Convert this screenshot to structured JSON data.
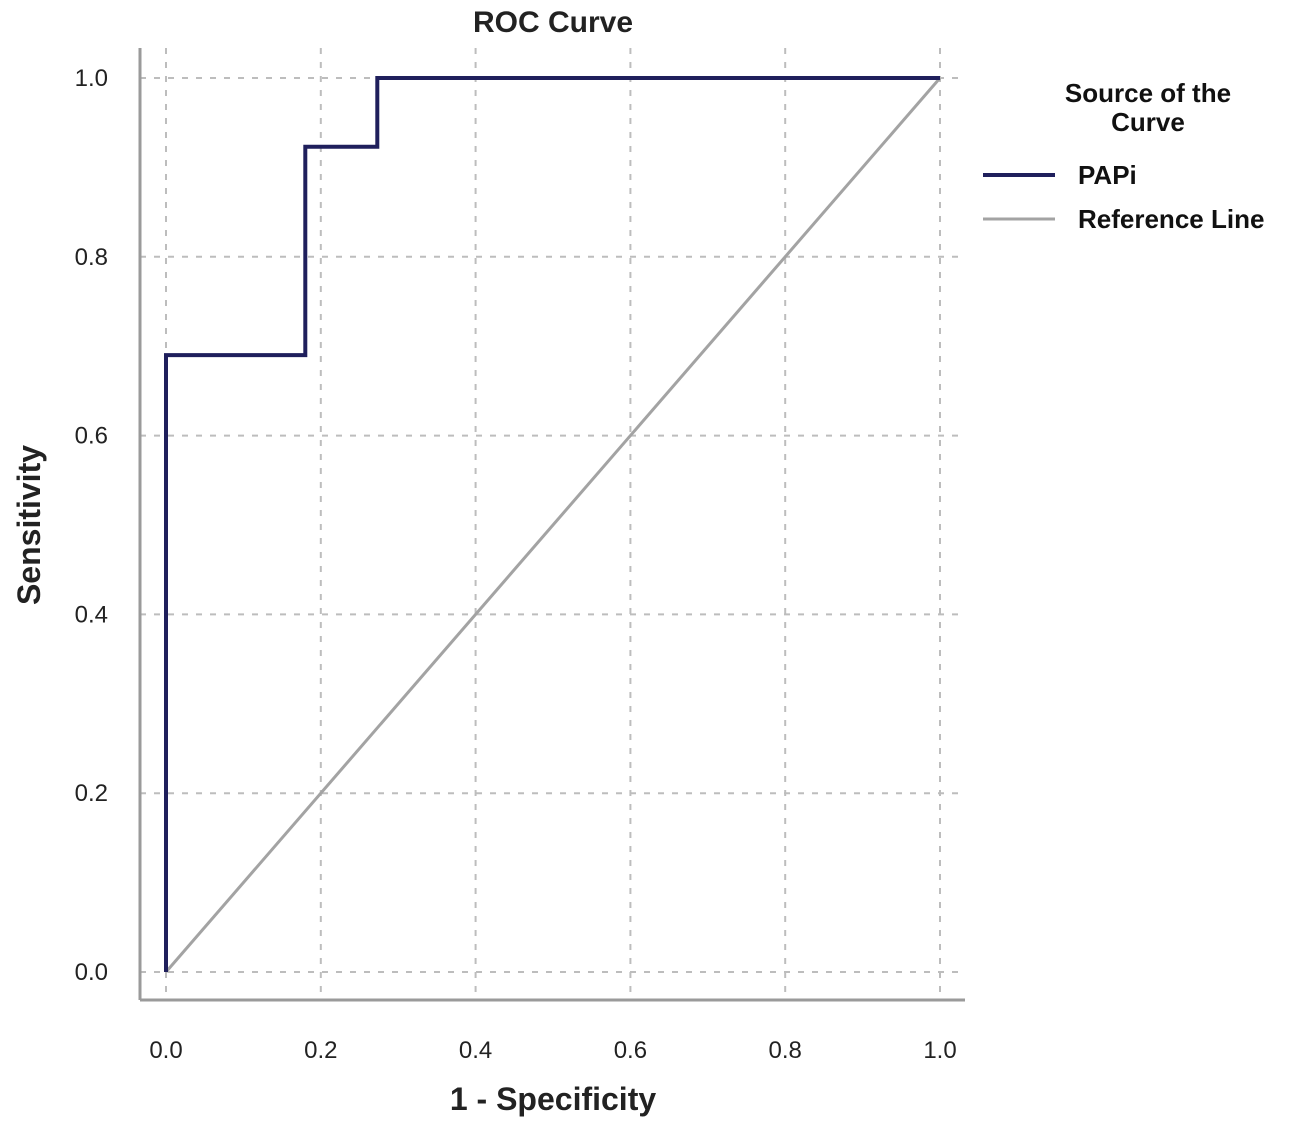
{
  "chart_data": {
    "type": "line",
    "title": "ROC Curve",
    "xlabel": "1 - Specificity",
    "ylabel": "Sensitivity",
    "xlim": [
      0,
      1
    ],
    "ylim": [
      0,
      1
    ],
    "x_ticks": [
      "0.0",
      "0.2",
      "0.4",
      "0.6",
      "0.8",
      "1.0"
    ],
    "y_ticks": [
      "0.0",
      "0.2",
      "0.4",
      "0.6",
      "0.8",
      "1.0"
    ],
    "grid": true,
    "legend": {
      "title_lines": [
        "Source of the",
        "Curve"
      ],
      "placement": "right"
    },
    "series": [
      {
        "name": "PAPi",
        "color": "#1f1f5c",
        "step": true,
        "points": [
          [
            0,
            0
          ],
          [
            0,
            0.69
          ],
          [
            0.18,
            0.69
          ],
          [
            0.18,
            0.923
          ],
          [
            0.273,
            0.923
          ],
          [
            0.273,
            1.0
          ],
          [
            1.0,
            1.0
          ]
        ]
      },
      {
        "name": "Reference Line",
        "color": "#a3a3a3",
        "step": false,
        "points": [
          [
            0,
            0
          ],
          [
            1,
            1
          ]
        ]
      }
    ]
  }
}
